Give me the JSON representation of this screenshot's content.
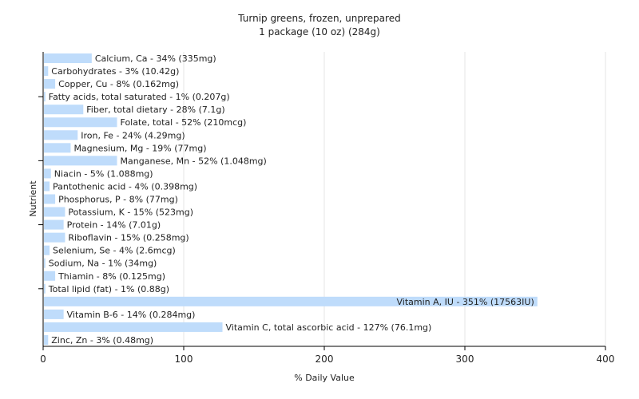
{
  "chart_data": {
    "type": "bar",
    "orientation": "horizontal",
    "title": "Turnip greens, frozen, unprepared",
    "subtitle": "1 package (10 oz) (284g)",
    "xlabel": "% Daily Value",
    "ylabel": "Nutrient",
    "xlim": [
      0,
      400
    ],
    "xticks": [
      0,
      100,
      200,
      300,
      400
    ],
    "grid": true,
    "bar_color": "#bfdcfb",
    "bars": [
      {
        "label": "Calcium, Ca - 34% (335mg)",
        "value": 34
      },
      {
        "label": "Carbohydrates - 3% (10.42g)",
        "value": 3
      },
      {
        "label": "Copper, Cu - 8% (0.162mg)",
        "value": 8
      },
      {
        "label": "Fatty acids, total saturated - 1% (0.207g)",
        "value": 1
      },
      {
        "label": "Fiber, total dietary - 28% (7.1g)",
        "value": 28
      },
      {
        "label": "Folate, total - 52% (210mcg)",
        "value": 52
      },
      {
        "label": "Iron, Fe - 24% (4.29mg)",
        "value": 24
      },
      {
        "label": "Magnesium, Mg - 19% (77mg)",
        "value": 19
      },
      {
        "label": "Manganese, Mn - 52% (1.048mg)",
        "value": 52
      },
      {
        "label": "Niacin - 5% (1.088mg)",
        "value": 5
      },
      {
        "label": "Pantothenic acid - 4% (0.398mg)",
        "value": 4
      },
      {
        "label": "Phosphorus, P - 8% (77mg)",
        "value": 8
      },
      {
        "label": "Potassium, K - 15% (523mg)",
        "value": 15
      },
      {
        "label": "Protein - 14% (7.01g)",
        "value": 14
      },
      {
        "label": "Riboflavin - 15% (0.258mg)",
        "value": 15
      },
      {
        "label": "Selenium, Se - 4% (2.6mcg)",
        "value": 4
      },
      {
        "label": "Sodium, Na - 1% (34mg)",
        "value": 1
      },
      {
        "label": "Thiamin - 8% (0.125mg)",
        "value": 8
      },
      {
        "label": "Total lipid (fat) - 1% (0.88g)",
        "value": 1
      },
      {
        "label": "Vitamin A, IU - 351% (17563IU)",
        "value": 351
      },
      {
        "label": "Vitamin B-6 - 14% (0.284mg)",
        "value": 14
      },
      {
        "label": "Vitamin C, total ascorbic acid - 127% (76.1mg)",
        "value": 127
      },
      {
        "label": "Zinc, Zn - 3% (0.48mg)",
        "value": 3
      }
    ]
  }
}
